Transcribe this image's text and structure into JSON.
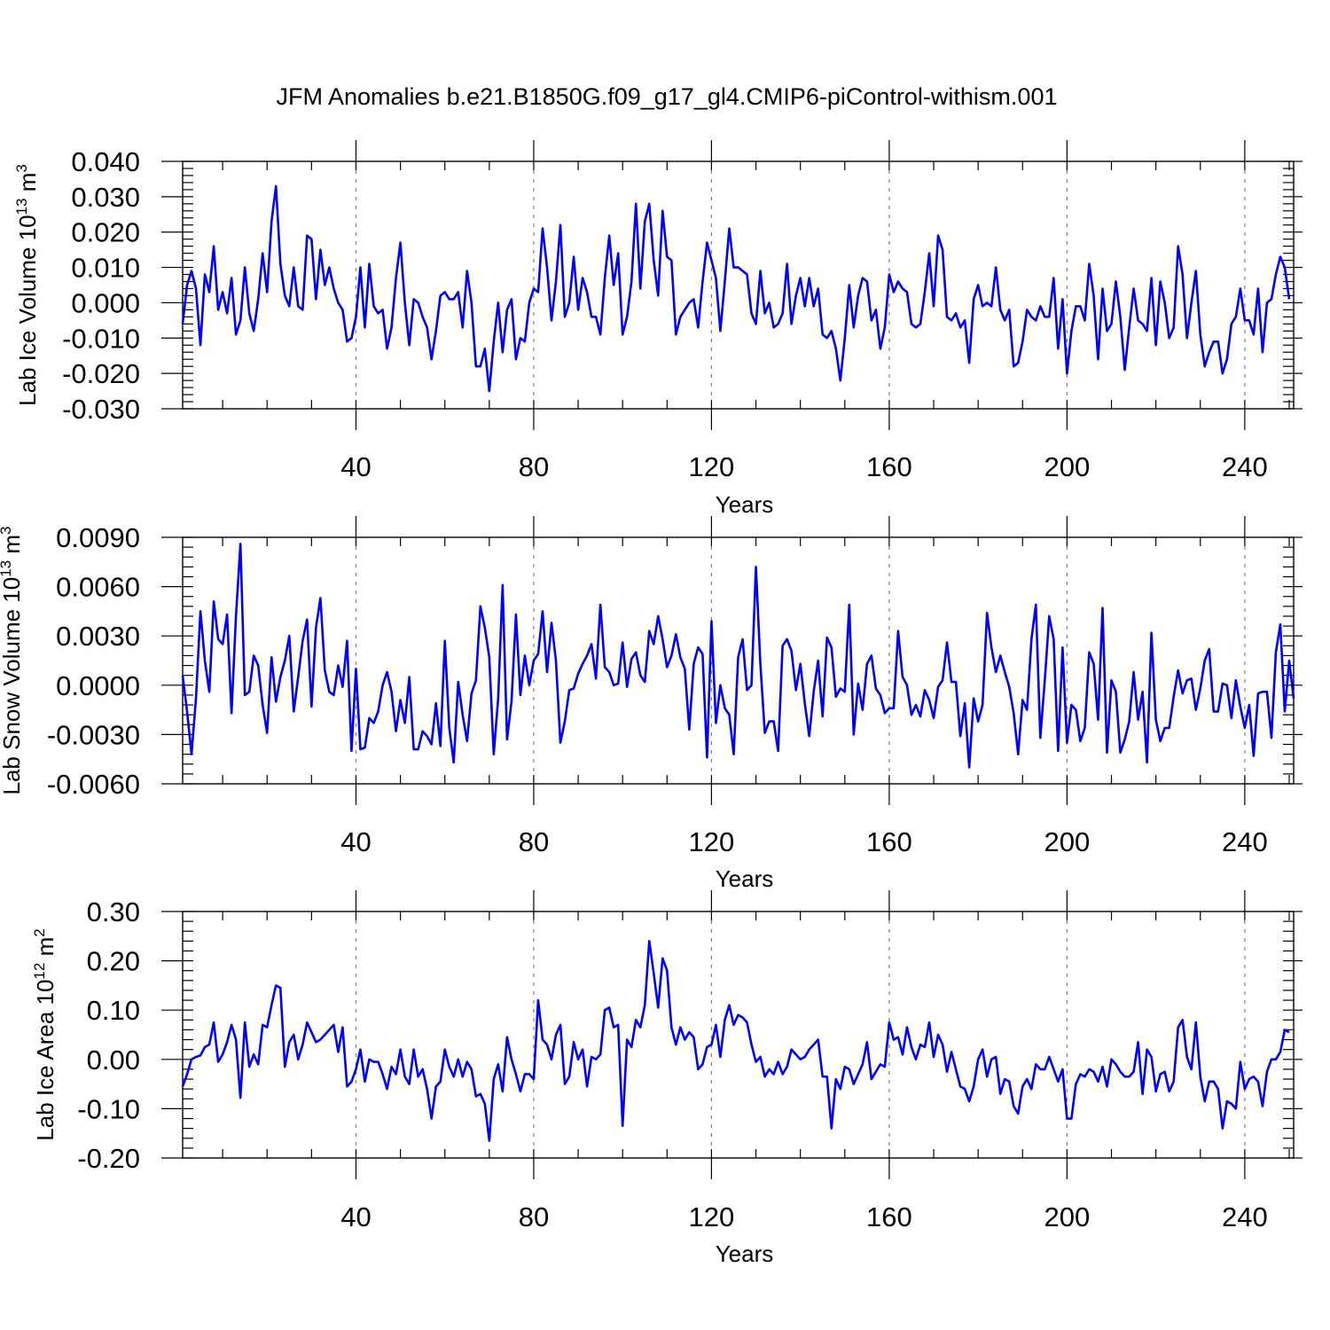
{
  "title": "JFM Anomalies b.e21.B1850G.f09_g17_gl4.CMIP6-piControl-withism.001",
  "colors": {
    "series": "#0000ff",
    "grid": "#808080",
    "axis": "#000000"
  },
  "chart_data": [
    {
      "type": "line",
      "name": "ice-volume",
      "ylabel_main": "Lab Ice Volume 10",
      "ylabel_exp": "13",
      "ylabel_unit": " m",
      "ylabel_unit_exp": "3",
      "xlabel": "Years",
      "xlim": [
        1,
        251
      ],
      "ylim": [
        -0.03,
        0.04
      ],
      "xticks": [
        40,
        80,
        120,
        160,
        200,
        240
      ],
      "xtick_labels": [
        "40",
        "80",
        "120",
        "160",
        "200",
        "240"
      ],
      "yticks": [
        -0.03,
        -0.02,
        -0.01,
        0.0,
        0.01,
        0.02,
        0.03,
        0.04
      ],
      "ytick_labels": [
        "-0.030",
        "-0.020",
        "-0.010",
        "0.000",
        "0.010",
        "0.020",
        "0.030",
        "0.040"
      ],
      "x_start": 1,
      "values": [
        -0.006,
        0.005,
        0.009,
        0.004,
        -0.012,
        0.008,
        0.003,
        0.016,
        -0.002,
        0.003,
        -0.003,
        0.007,
        -0.009,
        -0.005,
        0.01,
        -0.003,
        -0.008,
        0.001,
        0.014,
        0.003,
        0.023,
        0.033,
        0.011,
        0.002,
        -0.001,
        0.01,
        -0.001,
        -0.002,
        0.019,
        0.018,
        0.001,
        0.015,
        0.005,
        0.01,
        0.004,
        0.0,
        -0.002,
        -0.011,
        -0.01,
        -0.004,
        0.01,
        -0.007,
        0.011,
        -0.001,
        -0.003,
        -0.002,
        -0.013,
        -0.007,
        0.007,
        0.017,
        0.0,
        -0.012,
        0.001,
        0.0,
        -0.004,
        -0.007,
        -0.016,
        -0.008,
        0.002,
        0.003,
        0.001,
        0.001,
        0.003,
        -0.007,
        0.009,
        0.0,
        -0.018,
        -0.018,
        -0.013,
        -0.025,
        -0.011,
        0.0,
        -0.014,
        -0.002,
        0.001,
        -0.016,
        -0.01,
        -0.011,
        0.0,
        0.004,
        0.003,
        0.021,
        0.01,
        -0.005,
        0.006,
        0.022,
        -0.004,
        0.0,
        0.013,
        -0.002,
        0.007,
        0.003,
        -0.004,
        -0.004,
        -0.009,
        0.007,
        0.019,
        0.005,
        0.014,
        -0.009,
        -0.004,
        0.006,
        0.028,
        0.004,
        0.023,
        0.028,
        0.012,
        0.002,
        0.026,
        0.013,
        0.012,
        -0.009,
        -0.004,
        -0.002,
        0.0,
        0.001,
        -0.007,
        0.006,
        0.017,
        0.012,
        0.007,
        -0.008,
        0.006,
        0.021,
        0.01,
        0.01,
        0.009,
        0.008,
        -0.003,
        -0.006,
        0.009,
        -0.003,
        0.0,
        -0.007,
        -0.006,
        -0.003,
        0.011,
        -0.006,
        0.002,
        0.007,
        -0.001,
        0.007,
        -0.001,
        0.004,
        -0.009,
        -0.01,
        -0.008,
        -0.013,
        -0.022,
        -0.01,
        0.005,
        -0.007,
        0.002,
        0.007,
        0.006,
        -0.005,
        -0.002,
        -0.013,
        -0.007,
        0.008,
        0.003,
        0.006,
        0.004,
        0.003,
        -0.006,
        -0.007,
        -0.006,
        0.003,
        0.014,
        -0.001,
        0.019,
        0.015,
        -0.004,
        -0.005,
        -0.003,
        -0.007,
        -0.005,
        -0.017,
        0.001,
        0.005,
        -0.001,
        0.0,
        -0.001,
        0.01,
        -0.002,
        -0.005,
        -0.002,
        -0.018,
        -0.017,
        -0.011,
        -0.002,
        -0.004,
        -0.005,
        -0.001,
        -0.004,
        -0.004,
        0.007,
        -0.013,
        0.001,
        -0.02,
        -0.008,
        -0.001,
        -0.001,
        -0.005,
        0.011,
        0.002,
        -0.016,
        0.004,
        -0.008,
        -0.006,
        0.006,
        -0.004,
        -0.019,
        -0.007,
        0.004,
        -0.005,
        -0.006,
        -0.008,
        0.007,
        -0.012,
        0.006,
        0.0,
        -0.01,
        -0.007,
        0.016,
        0.008,
        -0.01,
        0.0,
        0.009,
        -0.009,
        -0.018,
        -0.014,
        -0.011,
        -0.011,
        -0.02,
        -0.016,
        -0.006,
        -0.004,
        0.004,
        -0.005,
        -0.005,
        -0.009,
        0.004,
        -0.014,
        0.0,
        0.001,
        0.008,
        0.013,
        0.01,
        0.001
      ]
    },
    {
      "type": "line",
      "name": "snow-volume",
      "ylabel_main": "Lab Snow Volume 10",
      "ylabel_exp": "13",
      "ylabel_unit": " m",
      "ylabel_unit_exp": "3",
      "xlabel": "Years",
      "xlim": [
        1,
        251
      ],
      "ylim": [
        -0.006,
        0.009
      ],
      "xticks": [
        40,
        80,
        120,
        160,
        200,
        240
      ],
      "xtick_labels": [
        "40",
        "80",
        "120",
        "160",
        "200",
        "240"
      ],
      "yticks": [
        -0.006,
        -0.003,
        0.0,
        0.003,
        0.006,
        0.009
      ],
      "ytick_labels": [
        "-0.0060",
        "-0.0030",
        "0.0000",
        "0.0030",
        "0.0060",
        "0.0090"
      ],
      "x_start": 1,
      "values": [
        0.0006,
        -0.0016,
        -0.0042,
        -0.0008,
        0.0045,
        0.0015,
        -0.0004,
        0.0051,
        0.0028,
        0.0025,
        0.0043,
        -0.0017,
        0.0042,
        0.0086,
        -0.0006,
        -0.0004,
        0.0018,
        0.0012,
        -0.0012,
        -0.0029,
        0.0017,
        -0.001,
        0.0005,
        0.0015,
        0.003,
        -0.0016,
        0.0005,
        0.0027,
        0.004,
        -0.0013,
        0.0035,
        0.0053,
        0.0009,
        -0.0004,
        -0.0006,
        0.0012,
        -0.0001,
        0.0027,
        -0.004,
        0.001,
        -0.0039,
        -0.0038,
        -0.002,
        -0.0023,
        -0.0016,
        0.0,
        0.0008,
        -0.0004,
        -0.0028,
        -0.0009,
        -0.0023,
        0.0005,
        -0.0039,
        -0.0039,
        -0.0028,
        -0.0031,
        -0.0036,
        -0.0011,
        -0.0037,
        0.0027,
        -0.0026,
        -0.0047,
        0.0002,
        -0.0018,
        -0.0034,
        -0.0005,
        0.0003,
        0.0048,
        0.0035,
        0.0017,
        -0.0042,
        -0.0008,
        0.0061,
        -0.0033,
        -0.001,
        0.0043,
        -0.0006,
        0.0018,
        0.0,
        0.0015,
        0.0019,
        0.0045,
        0.0008,
        0.0038,
        0.0015,
        -0.0035,
        -0.0022,
        -0.0003,
        -0.0002,
        0.0007,
        0.0013,
        0.0018,
        0.0025,
        0.0004,
        0.0049,
        0.0011,
        0.0008,
        0.0,
        0.0001,
        0.0026,
        -0.0001,
        0.0016,
        0.002,
        0.0006,
        0.0002,
        0.0033,
        0.0025,
        0.0042,
        0.0028,
        0.0011,
        0.0018,
        0.0031,
        0.0017,
        0.001,
        -0.0027,
        0.0013,
        0.0023,
        0.0019,
        -0.0044,
        0.0039,
        -0.0023,
        0.0,
        -0.0014,
        -0.0018,
        -0.0042,
        0.0017,
        0.0028,
        -0.0003,
        0.0,
        0.0072,
        0.0013,
        -0.0029,
        -0.0022,
        -0.0022,
        -0.004,
        0.0024,
        0.0028,
        0.0021,
        -0.0003,
        0.0013,
        -0.0011,
        -0.0031,
        -0.0004,
        0.0015,
        -0.0019,
        0.0029,
        0.0023,
        -0.0007,
        -0.0002,
        -0.0004,
        0.0049,
        -0.003,
        0.0001,
        -0.0015,
        0.0013,
        0.0018,
        -0.0002,
        -0.0006,
        -0.0017,
        -0.0014,
        -0.0014,
        0.0033,
        0.0005,
        0.0,
        -0.0018,
        -0.0012,
        -0.0019,
        -0.0003,
        -0.0009,
        -0.002,
        -0.0001,
        0.0003,
        0.0026,
        0.0002,
        0.0002,
        -0.0031,
        -0.0011,
        -0.005,
        -0.0008,
        -0.0022,
        -0.0012,
        0.0044,
        0.0023,
        0.0008,
        0.0018,
        0.0008,
        -0.0001,
        -0.0017,
        -0.0042,
        -0.0009,
        -0.0015,
        0.0028,
        0.0049,
        -0.0032,
        0.0003,
        0.0042,
        0.0028,
        -0.004,
        0.0023,
        -0.0035,
        -0.0012,
        -0.0015,
        -0.0034,
        -0.0026,
        0.002,
        0.0013,
        -0.0021,
        0.0047,
        -0.0041,
        0.0003,
        -0.0004,
        -0.0041,
        -0.0033,
        -0.0022,
        0.0008,
        -0.0021,
        -0.0004,
        -0.0047,
        0.0032,
        -0.0021,
        -0.0034,
        -0.0026,
        -0.0026,
        -0.0007,
        0.0009,
        -0.0005,
        0.0003,
        0.0004,
        -0.0015,
        -0.0002,
        0.0015,
        0.0022,
        -0.0016,
        -0.0016,
        0.0001,
        0.0,
        -0.002,
        0.0003,
        -0.0013,
        -0.0026,
        -0.0012,
        -0.0043,
        -0.0005,
        -0.0004,
        -0.0004,
        -0.0032,
        0.002,
        0.0037,
        -0.0016,
        0.0015,
        -0.0008
      ]
    },
    {
      "type": "line",
      "name": "ice-area",
      "ylabel_main": "Lab Ice Area 10",
      "ylabel_exp": "12",
      "ylabel_unit": " m",
      "ylabel_unit_exp": "2",
      "xlabel": "Years",
      "xlim": [
        1,
        251
      ],
      "ylim": [
        -0.2,
        0.3
      ],
      "xticks": [
        40,
        80,
        120,
        160,
        200,
        240
      ],
      "xtick_labels": [
        "40",
        "80",
        "120",
        "160",
        "200",
        "240"
      ],
      "yticks": [
        -0.2,
        -0.1,
        0.0,
        0.1,
        0.2,
        0.3
      ],
      "ytick_labels": [
        "-0.20",
        "-0.10",
        "0.00",
        "0.10",
        "0.20",
        "0.30"
      ],
      "x_start": 1,
      "values": [
        -0.055,
        -0.03,
        0.0,
        0.005,
        0.008,
        0.025,
        0.03,
        0.075,
        -0.005,
        0.01,
        0.035,
        0.07,
        0.04,
        -0.078,
        0.075,
        -0.015,
        0.01,
        -0.01,
        0.07,
        0.065,
        0.11,
        0.15,
        0.145,
        -0.015,
        0.035,
        0.05,
        0.0,
        0.03,
        0.075,
        0.055,
        0.035,
        0.04,
        0.05,
        0.06,
        0.07,
        0.015,
        0.065,
        -0.055,
        -0.045,
        -0.02,
        0.02,
        -0.045,
        0.0,
        -0.005,
        -0.005,
        -0.03,
        -0.06,
        -0.015,
        -0.03,
        0.02,
        -0.035,
        -0.05,
        0.02,
        -0.035,
        -0.02,
        -0.06,
        -0.12,
        -0.055,
        -0.045,
        0.02,
        -0.015,
        -0.035,
        0.0,
        -0.035,
        -0.005,
        -0.02,
        -0.075,
        -0.07,
        -0.09,
        -0.165,
        -0.04,
        -0.01,
        -0.065,
        0.045,
        0.0,
        -0.03,
        -0.065,
        -0.03,
        -0.03,
        -0.04,
        0.12,
        0.04,
        0.03,
        0.0,
        0.05,
        0.07,
        -0.05,
        -0.035,
        0.035,
        0.0,
        0.02,
        -0.055,
        0.005,
        0.0,
        0.01,
        0.1,
        0.105,
        0.065,
        0.07,
        -0.135,
        0.04,
        0.025,
        0.08,
        0.065,
        0.11,
        0.24,
        0.175,
        0.105,
        0.205,
        0.18,
        0.065,
        0.03,
        0.065,
        0.04,
        0.055,
        0.045,
        -0.02,
        -0.01,
        0.025,
        0.03,
        0.07,
        0.005,
        0.08,
        0.11,
        0.07,
        0.09,
        0.085,
        0.075,
        0.03,
        -0.005,
        0.005,
        -0.035,
        -0.02,
        -0.03,
        -0.005,
        -0.03,
        -0.015,
        0.02,
        0.01,
        0.0,
        0.005,
        0.02,
        0.03,
        0.04,
        -0.035,
        -0.035,
        -0.14,
        -0.04,
        -0.06,
        -0.015,
        -0.02,
        -0.05,
        -0.03,
        -0.01,
        0.035,
        -0.04,
        -0.025,
        -0.01,
        -0.015,
        0.075,
        0.04,
        0.045,
        0.01,
        0.065,
        0.025,
        0.0,
        0.03,
        0.025,
        0.075,
        0.005,
        0.05,
        0.03,
        -0.025,
        0.015,
        -0.02,
        -0.055,
        -0.06,
        -0.085,
        -0.055,
        0.0,
        0.02,
        -0.035,
        0.0,
        0.005,
        -0.07,
        -0.04,
        -0.045,
        -0.095,
        -0.11,
        -0.055,
        -0.04,
        -0.06,
        -0.01,
        -0.02,
        -0.02,
        0.005,
        -0.02,
        -0.045,
        -0.02,
        -0.12,
        -0.12,
        -0.05,
        -0.03,
        -0.035,
        -0.02,
        -0.025,
        -0.045,
        -0.015,
        -0.055,
        0.0,
        -0.01,
        -0.025,
        -0.035,
        -0.035,
        -0.025,
        0.035,
        -0.07,
        0.02,
        0.005,
        -0.065,
        -0.03,
        -0.025,
        -0.065,
        -0.045,
        0.065,
        0.08,
        0.005,
        -0.02,
        0.075,
        -0.035,
        -0.085,
        -0.045,
        -0.045,
        -0.06,
        -0.14,
        -0.085,
        -0.09,
        -0.1,
        -0.005,
        -0.06,
        -0.04,
        -0.035,
        -0.045,
        -0.095,
        -0.025,
        0.0,
        0.0,
        0.015,
        0.06,
        0.055
      ]
    }
  ]
}
